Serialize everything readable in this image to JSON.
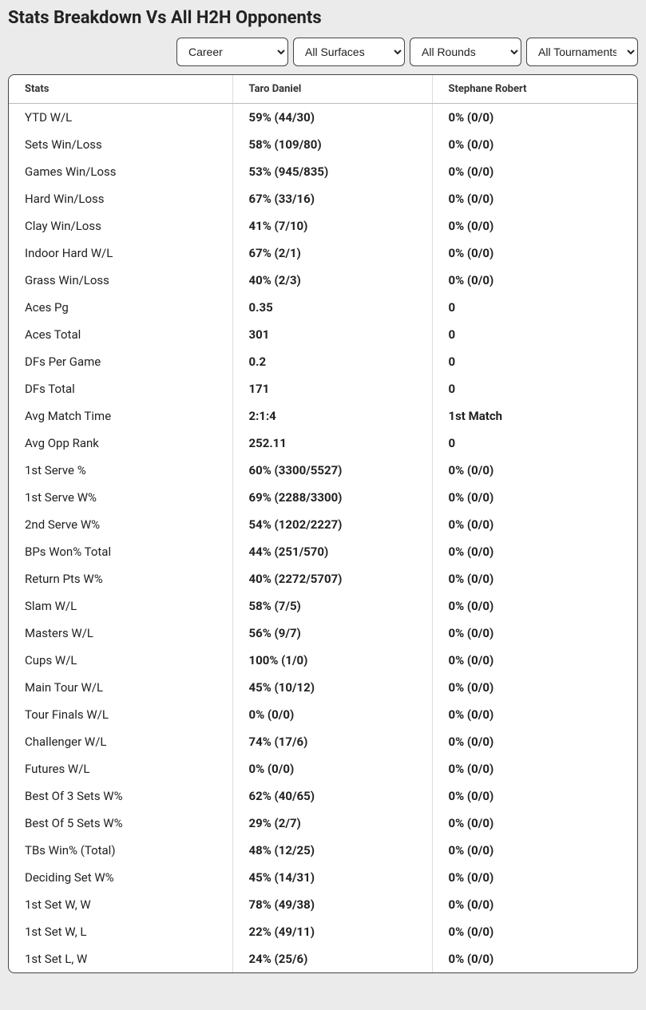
{
  "title": "Stats Breakdown Vs All H2H Opponents",
  "filters": {
    "career": {
      "selected": "Career"
    },
    "surfaces": {
      "selected": "All Surfaces"
    },
    "rounds": {
      "selected": "All Rounds"
    },
    "tournaments": {
      "selected": "All Tournaments"
    }
  },
  "table": {
    "columns": [
      "Stats",
      "Taro Daniel",
      "Stephane Robert"
    ],
    "rows": [
      {
        "stat": "YTD W/L",
        "p1": "59% (44/30)",
        "p2": "0% (0/0)"
      },
      {
        "stat": "Sets Win/Loss",
        "p1": "58% (109/80)",
        "p2": "0% (0/0)"
      },
      {
        "stat": "Games Win/Loss",
        "p1": "53% (945/835)",
        "p2": "0% (0/0)"
      },
      {
        "stat": "Hard Win/Loss",
        "p1": "67% (33/16)",
        "p2": "0% (0/0)"
      },
      {
        "stat": "Clay Win/Loss",
        "p1": "41% (7/10)",
        "p2": "0% (0/0)"
      },
      {
        "stat": "Indoor Hard W/L",
        "p1": "67% (2/1)",
        "p2": "0% (0/0)"
      },
      {
        "stat": "Grass Win/Loss",
        "p1": "40% (2/3)",
        "p2": "0% (0/0)"
      },
      {
        "stat": "Aces Pg",
        "p1": "0.35",
        "p2": "0"
      },
      {
        "stat": "Aces Total",
        "p1": "301",
        "p2": "0"
      },
      {
        "stat": "DFs Per Game",
        "p1": "0.2",
        "p2": "0"
      },
      {
        "stat": "DFs Total",
        "p1": "171",
        "p2": "0"
      },
      {
        "stat": "Avg Match Time",
        "p1": "2:1:4",
        "p2": "1st Match"
      },
      {
        "stat": "Avg Opp Rank",
        "p1": "252.11",
        "p2": "0"
      },
      {
        "stat": "1st Serve %",
        "p1": "60% (3300/5527)",
        "p2": "0% (0/0)"
      },
      {
        "stat": "1st Serve W%",
        "p1": "69% (2288/3300)",
        "p2": "0% (0/0)"
      },
      {
        "stat": "2nd Serve W%",
        "p1": "54% (1202/2227)",
        "p2": "0% (0/0)"
      },
      {
        "stat": "BPs Won% Total",
        "p1": "44% (251/570)",
        "p2": "0% (0/0)"
      },
      {
        "stat": "Return Pts W%",
        "p1": "40% (2272/5707)",
        "p2": "0% (0/0)"
      },
      {
        "stat": "Slam W/L",
        "p1": "58% (7/5)",
        "p2": "0% (0/0)"
      },
      {
        "stat": "Masters W/L",
        "p1": "56% (9/7)",
        "p2": "0% (0/0)"
      },
      {
        "stat": "Cups W/L",
        "p1": "100% (1/0)",
        "p2": "0% (0/0)"
      },
      {
        "stat": "Main Tour W/L",
        "p1": "45% (10/12)",
        "p2": "0% (0/0)"
      },
      {
        "stat": "Tour Finals W/L",
        "p1": "0% (0/0)",
        "p2": "0% (0/0)"
      },
      {
        "stat": "Challenger W/L",
        "p1": "74% (17/6)",
        "p2": "0% (0/0)"
      },
      {
        "stat": "Futures W/L",
        "p1": "0% (0/0)",
        "p2": "0% (0/0)"
      },
      {
        "stat": "Best Of 3 Sets W%",
        "p1": "62% (40/65)",
        "p2": "0% (0/0)"
      },
      {
        "stat": "Best Of 5 Sets W%",
        "p1": "29% (2/7)",
        "p2": "0% (0/0)"
      },
      {
        "stat": "TBs Win% (Total)",
        "p1": "48% (12/25)",
        "p2": "0% (0/0)"
      },
      {
        "stat": "Deciding Set W%",
        "p1": "45% (14/31)",
        "p2": "0% (0/0)"
      },
      {
        "stat": "1st Set W, W",
        "p1": "78% (49/38)",
        "p2": "0% (0/0)"
      },
      {
        "stat": "1st Set W, L",
        "p1": "22% (49/11)",
        "p2": "0% (0/0)"
      },
      {
        "stat": "1st Set L, W",
        "p1": "24% (25/6)",
        "p2": "0% (0/0)"
      }
    ]
  },
  "colors": {
    "page_bg": "#ebebeb",
    "panel_bg": "#ffffff",
    "border": "#444444",
    "header_border": "#bbbbbb",
    "cell_border": "#dddddd",
    "text": "#222222"
  }
}
